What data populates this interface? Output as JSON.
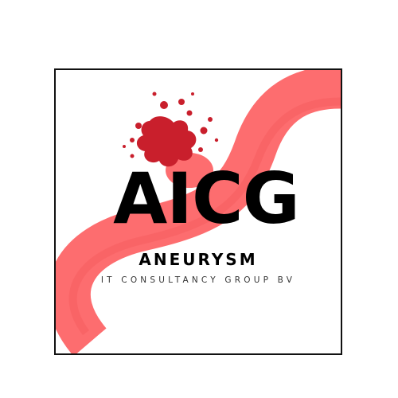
{
  "logo": {
    "monogram": "AICG",
    "name": "ANEURYSM",
    "tagline": "IT CONSULTANCY GROUP BV"
  },
  "colors": {
    "vessel": "#fd6d6f",
    "vessel_shadow": "#f25457",
    "splash": "#c91f2c",
    "text": "#000000",
    "frame": "#111111"
  },
  "icons": [
    "blood-vessel-icon",
    "blood-splash-icon"
  ]
}
